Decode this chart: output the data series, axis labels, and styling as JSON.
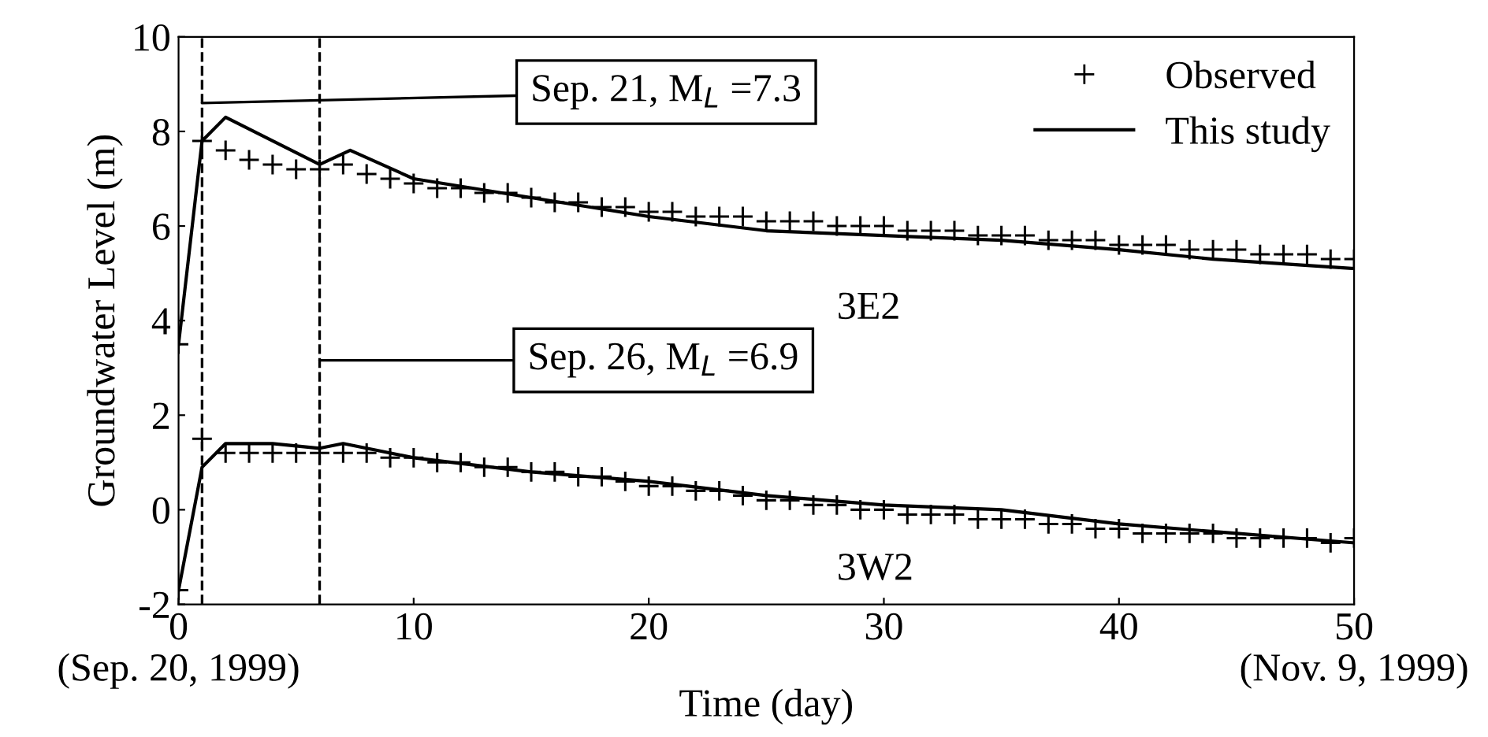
{
  "chart_data": {
    "type": "line",
    "xlabel": "Time (day)",
    "ylabel": "Groundwater Level (m)",
    "xlim": [
      0,
      50
    ],
    "ylim": [
      -2,
      10
    ],
    "xticks": [
      {
        "value": 0,
        "label": "0\n(Sep. 20, 1999)"
      },
      10,
      20,
      30,
      40,
      {
        "value": 50,
        "label": "50\n(Nov. 9, 1999)"
      }
    ],
    "yticks": [
      -2,
      0,
      2,
      4,
      6,
      8,
      10
    ],
    "grid": false,
    "legend": "top right",
    "series": [
      {
        "name": "Observed",
        "type": "scatter",
        "marker": "cross",
        "color": "#000000",
        "x": [
          0,
          1,
          2,
          3,
          4,
          5,
          6,
          7,
          8,
          9,
          10,
          11,
          12,
          13,
          14,
          15,
          16,
          17,
          18,
          19,
          20,
          21,
          22,
          23,
          24,
          25,
          26,
          27,
          28,
          29,
          30,
          31,
          32,
          33,
          34,
          35,
          36,
          37,
          38,
          39,
          40,
          41,
          42,
          43,
          44,
          45,
          46,
          47,
          48,
          49,
          50
        ],
        "values": [
          3.5,
          7.8,
          7.6,
          7.4,
          7.3,
          7.2,
          7.2,
          7.3,
          7.1,
          7.0,
          6.9,
          6.8,
          6.8,
          6.7,
          6.7,
          6.6,
          6.5,
          6.5,
          6.4,
          6.4,
          6.3,
          6.3,
          6.2,
          6.2,
          6.2,
          6.1,
          6.1,
          6.1,
          6.0,
          6.0,
          6.0,
          5.9,
          5.9,
          5.9,
          5.8,
          5.8,
          5.8,
          5.7,
          5.7,
          5.7,
          5.6,
          5.6,
          5.6,
          5.5,
          5.5,
          5.5,
          5.4,
          5.4,
          5.4,
          5.3,
          5.3
        ]
      },
      {
        "name": "This study",
        "line_style": "solid",
        "color": "#000000",
        "x": [
          0,
          1,
          2,
          4,
          6,
          7.3,
          10,
          15,
          20,
          25,
          30,
          35,
          40,
          44,
          50
        ],
        "values": [
          3.5,
          7.8,
          8.3,
          7.8,
          7.3,
          7.6,
          7.0,
          6.6,
          6.2,
          5.9,
          5.8,
          5.7,
          5.5,
          5.3,
          5.1
        ]
      },
      {
        "type": "scatter",
        "marker": "cross",
        "color": "#000000",
        "x": [
          0,
          1,
          2,
          3,
          4,
          5,
          6,
          7,
          8,
          9,
          10,
          11,
          12,
          13,
          14,
          15,
          16,
          17,
          18,
          19,
          20,
          21,
          22,
          23,
          24,
          25,
          26,
          27,
          28,
          29,
          30,
          31,
          32,
          33,
          34,
          35,
          36,
          37,
          38,
          39,
          40,
          41,
          42,
          43,
          44,
          45,
          46,
          47,
          48,
          49,
          50
        ],
        "values": [
          -1.7,
          1.5,
          1.2,
          1.2,
          1.2,
          1.2,
          1.2,
          1.2,
          1.2,
          1.1,
          1.1,
          1.0,
          1.0,
          0.9,
          0.9,
          0.8,
          0.8,
          0.7,
          0.7,
          0.6,
          0.5,
          0.5,
          0.4,
          0.4,
          0.3,
          0.2,
          0.2,
          0.1,
          0.1,
          0.0,
          0.0,
          -0.1,
          -0.1,
          -0.1,
          -0.2,
          -0.2,
          -0.2,
          -0.3,
          -0.3,
          -0.4,
          -0.4,
          -0.5,
          -0.5,
          -0.5,
          -0.5,
          -0.6,
          -0.6,
          -0.6,
          -0.6,
          -0.7,
          -0.6
        ]
      },
      {
        "line_style": "solid",
        "color": "#000000",
        "x": [
          0,
          1,
          2,
          4,
          6,
          7,
          10,
          15,
          20,
          25,
          30,
          35,
          40,
          45,
          50
        ],
        "values": [
          -1.7,
          0.9,
          1.4,
          1.4,
          1.3,
          1.4,
          1.1,
          0.8,
          0.6,
          0.3,
          0.1,
          0.0,
          -0.3,
          -0.5,
          -0.7
        ]
      }
    ],
    "ref_lines": [
      {
        "axis": "x",
        "value": 1,
        "color": "#000000",
        "line_style": "dashed"
      },
      {
        "axis": "x",
        "value": 6,
        "color": "#000000",
        "line_style": "dashed"
      }
    ],
    "annotations": [
      {
        "text": "Sep. 21, M$_{L}$ =7.3",
        "x": 1,
        "y": 8.6
      },
      "Sep. 26, M$_{L}$ =6.9",
      "3E2",
      "3W2"
    ]
  }
}
